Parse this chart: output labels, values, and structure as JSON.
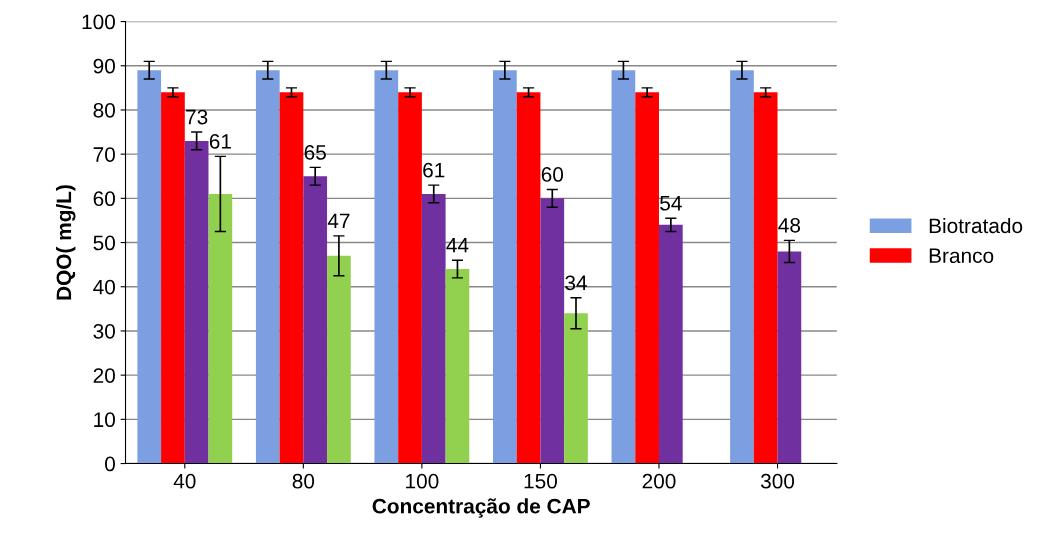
{
  "chart_data": {
    "type": "bar",
    "xlabel": "Concentração de CAP",
    "ylabel": "DQO( mg/L)",
    "categories": [
      "40",
      "80",
      "100",
      "150",
      "200",
      "300"
    ],
    "series": [
      {
        "name": "Biotratado",
        "color": "#7b9fe0",
        "values": [
          89,
          89,
          89,
          89,
          89,
          89
        ],
        "errors": [
          2,
          2,
          2,
          2,
          2,
          2
        ]
      },
      {
        "name": "Branco",
        "color": "#ff0000",
        "values": [
          84,
          84,
          84,
          84,
          84,
          84
        ],
        "errors": [
          1,
          1,
          1,
          1,
          1,
          1
        ]
      },
      {
        "color": "#7030a0",
        "values": [
          73,
          65,
          61,
          60,
          54,
          48
        ],
        "errors": [
          2,
          2,
          2,
          2,
          1.5,
          2.5
        ],
        "value_labels": [
          "73",
          "65",
          "61",
          "60",
          "54",
          "48"
        ]
      },
      {
        "color": "#92d050",
        "values": [
          61,
          47,
          44,
          34,
          null,
          null
        ],
        "errors": [
          8.5,
          4.5,
          2,
          3.5,
          null,
          null
        ],
        "value_labels": [
          "61",
          "47",
          "44",
          "34",
          null,
          null
        ]
      }
    ],
    "ylim": [
      0,
      100
    ],
    "yticks": [
      0,
      10,
      20,
      30,
      40,
      50,
      60,
      70,
      80,
      90,
      100
    ],
    "grid": "y",
    "legend": "right"
  }
}
